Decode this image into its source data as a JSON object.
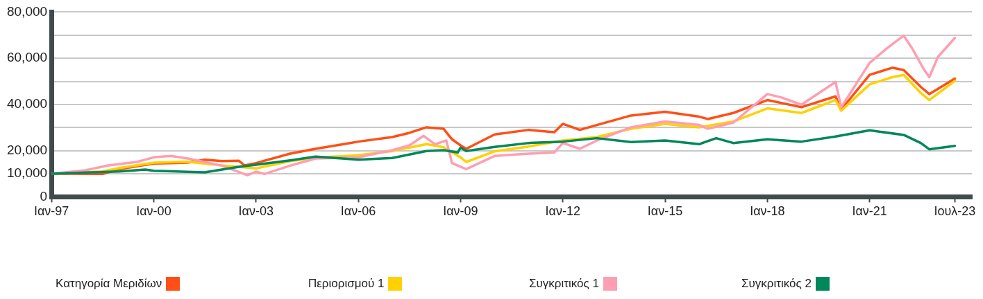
{
  "chart_data": {
    "type": "line",
    "legend": "bottom",
    "grid": "y",
    "marker": "none",
    "line_style": "solid",
    "xlim": [
      "1997-01",
      "2024-01"
    ],
    "xticks": [
      {
        "value": "1997-01",
        "label": "Ιαν-97"
      },
      {
        "value": "2000-01",
        "label": "Ιαν-00"
      },
      {
        "value": "2003-01",
        "label": "Ιαν-03"
      },
      {
        "value": "2006-01",
        "label": "Ιαν-06"
      },
      {
        "value": "2009-01",
        "label": "Ιαν-09"
      },
      {
        "value": "2012-01",
        "label": "Ιαν-12"
      },
      {
        "value": "2015-01",
        "label": "Ιαν-15"
      },
      {
        "value": "2018-01",
        "label": "Ιαν-18"
      },
      {
        "value": "2021-01",
        "label": "Ιαν-21"
      },
      {
        "value": "2023-07",
        "label": "Ιουλ-23"
      }
    ],
    "ylim": [
      0,
      80000
    ],
    "yticks": [
      {
        "value": 0,
        "label": "0"
      },
      {
        "value": 10000,
        "label": "10,000"
      },
      {
        "value": 20000,
        "label": "20,000"
      },
      {
        "value": 30000,
        "label": null
      },
      {
        "value": 40000,
        "label": "40,000"
      },
      {
        "value": 50000,
        "label": null
      },
      {
        "value": 60000,
        "label": "60,000"
      },
      {
        "value": 70000,
        "label": null
      },
      {
        "value": 80000,
        "label": "80,000"
      }
    ],
    "series": [
      {
        "name": "Κατηγορία Μεριδίων",
        "color": "#ff4f17",
        "x": [
          "1997-01",
          "1998-07",
          "1999-01",
          "2000-01",
          "2001-01",
          "2001-07",
          "2002-01",
          "2002-07",
          "2002-09",
          "2003-01",
          "2004-01",
          "2004-10",
          "2006-01",
          "2007-01",
          "2007-07",
          "2008-01",
          "2008-07",
          "2008-10",
          "2009-01",
          "2009-03",
          "2010-01",
          "2011-01",
          "2011-10",
          "2012-01",
          "2012-07",
          "2013-01",
          "2014-01",
          "2015-01",
          "2016-01",
          "2016-04",
          "2017-01",
          "2018-01",
          "2019-01",
          "2020-01",
          "2020-03",
          "2021-01",
          "2021-09",
          "2022-01",
          "2022-07",
          "2022-10",
          "2023-07"
        ],
        "values": [
          10000,
          9900,
          12000,
          14400,
          14800,
          16100,
          15500,
          15600,
          13600,
          14600,
          18700,
          20800,
          23900,
          25900,
          27700,
          30100,
          29500,
          24900,
          22300,
          20800,
          27000,
          29000,
          28000,
          31600,
          29000,
          31100,
          35200,
          36800,
          34700,
          33700,
          36300,
          41900,
          38800,
          43500,
          37800,
          52800,
          55900,
          54900,
          47600,
          44500,
          51200
        ]
      },
      {
        "name": "Περιορισμού 1",
        "color": "#ffd100",
        "x": [
          "1997-01",
          "1998-07",
          "1999-01",
          "2000-01",
          "2001-01",
          "2002-01",
          "2003-01",
          "2004-01",
          "2004-10",
          "2006-01",
          "2007-01",
          "2008-01",
          "2008-07",
          "2009-01",
          "2009-03",
          "2010-01",
          "2011-01",
          "2012-01",
          "2013-01",
          "2014-01",
          "2015-01",
          "2016-01",
          "2017-01",
          "2018-01",
          "2019-01",
          "2020-01",
          "2020-03",
          "2021-01",
          "2021-09",
          "2022-01",
          "2022-07",
          "2022-10",
          "2023-07"
        ],
        "values": [
          10000,
          11000,
          12500,
          14800,
          15200,
          13600,
          12300,
          15500,
          17000,
          18000,
          19800,
          22800,
          21500,
          17100,
          15100,
          19700,
          21800,
          24400,
          25900,
          29500,
          31600,
          30100,
          32600,
          38300,
          36300,
          41900,
          37300,
          48700,
          51800,
          52800,
          45000,
          41900,
          50200
        ]
      },
      {
        "name": "Συγκριτικός 1",
        "color": "#ff9eb3",
        "x": [
          "1997-01",
          "1998-01",
          "1998-09",
          "1999-07",
          "2000-01",
          "2000-07",
          "2001-01",
          "2002-01",
          "2002-10",
          "2003-01",
          "2003-04",
          "2004-01",
          "2004-10",
          "2006-01",
          "2007-01",
          "2007-07",
          "2007-12",
          "2008-04",
          "2008-08",
          "2008-10",
          "2009-03",
          "2010-01",
          "2011-01",
          "2011-10",
          "2012-01",
          "2012-07",
          "2013-01",
          "2014-01",
          "2015-01",
          "2016-01",
          "2016-04",
          "2017-01",
          "2018-01",
          "2018-06",
          "2019-01",
          "2020-01",
          "2020-03",
          "2021-01",
          "2021-07",
          "2022-01",
          "2022-04",
          "2022-08",
          "2022-10",
          "2023-01",
          "2023-07"
        ],
        "values": [
          10000,
          11500,
          13600,
          15100,
          17100,
          17700,
          16600,
          13500,
          9400,
          10900,
          9900,
          13500,
          16600,
          17100,
          20200,
          22300,
          26400,
          22800,
          24400,
          14600,
          12000,
          17700,
          18700,
          19200,
          23300,
          20800,
          24400,
          30100,
          32600,
          31100,
          29500,
          32100,
          44500,
          43000,
          39900,
          49700,
          38800,
          58000,
          64200,
          69800,
          64200,
          55400,
          51800,
          60500,
          68800
        ]
      },
      {
        "name": "Συγκριτικός 2",
        "color": "#00875a",
        "x": [
          "1997-01",
          "1998-01",
          "1999-01",
          "1999-10",
          "2000-01",
          "2001-07",
          "2002-07",
          "2003-01",
          "2004-01",
          "2004-10",
          "2006-01",
          "2007-01",
          "2008-01",
          "2008-07",
          "2008-12",
          "2009-01",
          "2009-03",
          "2010-01",
          "2011-01",
          "2012-01",
          "2013-01",
          "2014-01",
          "2015-01",
          "2016-01",
          "2016-07",
          "2017-01",
          "2018-01",
          "2019-01",
          "2020-01",
          "2021-01",
          "2022-01",
          "2022-07",
          "2022-10",
          "2023-07"
        ],
        "values": [
          10000,
          10500,
          11000,
          11800,
          11300,
          10600,
          13000,
          13900,
          15800,
          17400,
          16100,
          16800,
          19800,
          20200,
          19200,
          21300,
          19800,
          21600,
          23300,
          23900,
          25400,
          23700,
          24400,
          22800,
          25400,
          23300,
          24900,
          23900,
          26100,
          28800,
          26800,
          23300,
          20600,
          22100
        ]
      }
    ]
  }
}
